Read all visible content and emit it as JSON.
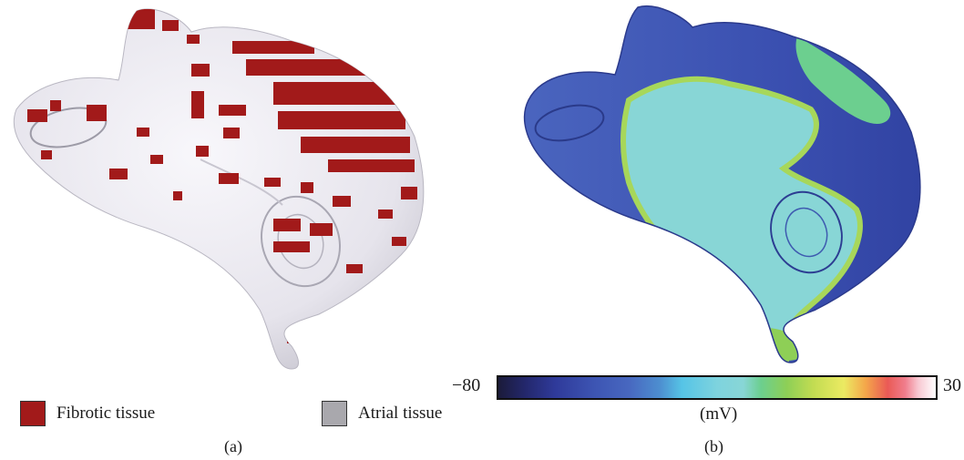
{
  "panel_a": {
    "legend": [
      {
        "label": "Fibrotic tissue",
        "color": "#a21a1a"
      },
      {
        "label": "Atrial tissue",
        "color": "#a9a8ad"
      }
    ],
    "caption": "(a)"
  },
  "panel_b": {
    "colorbar": {
      "min_label": "−80",
      "max_label": "30",
      "unit_label": "(mV)",
      "colormap_stops": [
        "#1b1b3a",
        "#2f3a9a",
        "#4868c0",
        "#56c4e6",
        "#88d6d6",
        "#8ecf56",
        "#ecea62",
        "#ea5a56",
        "#ffffff"
      ]
    },
    "caption": "(b)"
  },
  "colors": {
    "atrial_surface": "#ecebf1",
    "fibrosis": "#a21a1a",
    "map_background": "#3a4fb0",
    "map_activation": "#88d6d6",
    "map_wavefront": "#8ecf56"
  }
}
